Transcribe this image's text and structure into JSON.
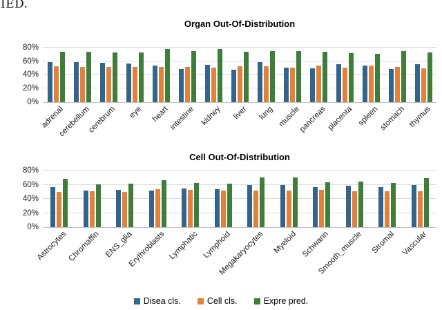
{
  "page": {
    "corner_text": "IED."
  },
  "legend": {
    "items": [
      {
        "label": "Disea cls.",
        "color": "#33648c"
      },
      {
        "label": "Cell cls.",
        "color": "#e1813c"
      },
      {
        "label": "Expre pred.",
        "color": "#3f7d3a"
      }
    ]
  },
  "chart_data": [
    {
      "type": "bar",
      "title": "Organ Out-Of-Distribution",
      "categories": [
        "adrenal",
        "cerebellum",
        "cerebrum",
        "eye",
        "heart",
        "intestine",
        "kidney",
        "liver",
        "lung",
        "muscle",
        "pancreas",
        "placenta",
        "spleen",
        "stomach",
        "thymus"
      ],
      "series": [
        {
          "name": "Disea cls.",
          "color": "#33648c",
          "values": [
            59,
            59,
            58,
            57,
            54,
            49,
            55,
            48,
            59,
            51,
            50,
            56,
            54,
            49,
            56
          ]
        },
        {
          "name": "Cell cls.",
          "color": "#e1813c",
          "values": [
            53,
            52,
            52,
            52,
            52,
            52,
            51,
            53,
            53,
            51,
            54,
            51,
            54,
            52,
            50
          ]
        },
        {
          "name": "Expre pred.",
          "color": "#3f7d3a",
          "values": [
            74,
            74,
            73,
            73,
            78,
            75,
            78,
            74,
            75,
            75,
            74,
            72,
            71,
            75,
            73
          ]
        }
      ],
      "ylim": [
        0,
        87
      ],
      "yticks": [
        "0%",
        "20%",
        "40%",
        "60%",
        "80%"
      ],
      "ytick_values": [
        0,
        20,
        40,
        60,
        80
      ],
      "xlabel": "",
      "ylabel": "",
      "grid": true,
      "legend_position": "shared-bottom"
    },
    {
      "type": "bar",
      "title": "Cell Out-Of-Distribution",
      "categories": [
        "Astrocytes",
        "Chromaffin",
        "ENS_glia",
        "Erythroblasts",
        "Lymphatic",
        "Lymphoid",
        "Megakaryocytes",
        "Myeloid",
        "Schwann",
        "Smooth_muscle",
        "Stromal",
        "Vascular"
      ],
      "series": [
        {
          "name": "Disea cls.",
          "color": "#33648c",
          "values": [
            57,
            52,
            53,
            52,
            55,
            54,
            60,
            60,
            57,
            59,
            57,
            60
          ]
        },
        {
          "name": "Cell cls.",
          "color": "#e1813c",
          "values": [
            50,
            51,
            50,
            54,
            53,
            52,
            52,
            52,
            53,
            51,
            51,
            51
          ]
        },
        {
          "name": "Expre pred.",
          "color": "#3f7d3a",
          "values": [
            68,
            61,
            62,
            66,
            63,
            62,
            70,
            70,
            64,
            65,
            63,
            69
          ]
        }
      ],
      "ylim": [
        0,
        87
      ],
      "yticks": [
        "0%",
        "20%",
        "40%",
        "60%",
        "80%"
      ],
      "ytick_values": [
        0,
        20,
        40,
        60,
        80
      ],
      "xlabel": "",
      "ylabel": "",
      "grid": true,
      "legend_position": "shared-bottom"
    }
  ]
}
